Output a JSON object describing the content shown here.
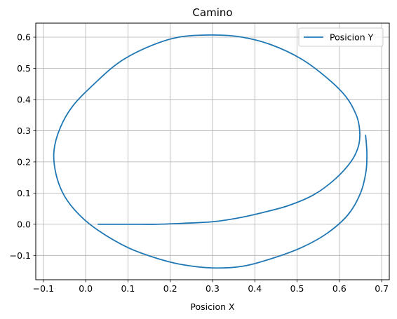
{
  "chart_data": {
    "type": "line",
    "title": "Camino",
    "xlabel": "Posicion X",
    "ylabel": "",
    "xlim": [
      -0.118,
      0.718
    ],
    "ylim": [
      -0.178,
      0.645
    ],
    "xticks": [
      -0.1,
      0.0,
      0.1,
      0.2,
      0.3,
      0.4,
      0.5,
      0.6,
      0.7
    ],
    "yticks": [
      -0.1,
      0.0,
      0.1,
      0.2,
      0.3,
      0.4,
      0.5,
      0.6
    ],
    "xtick_labels": [
      "−0.1",
      "0.0",
      "0.1",
      "0.2",
      "0.3",
      "0.4",
      "0.5",
      "0.6",
      "0.7"
    ],
    "ytick_labels": [
      "−0.1",
      "0.0",
      "0.1",
      "0.2",
      "0.3",
      "0.4",
      "0.5",
      "0.6"
    ],
    "grid": true,
    "legend_position": "top-right",
    "series": [
      {
        "name": "Posicion Y",
        "color": "#1f77b4",
        "points": [
          [
            0.03,
            0.0
          ],
          [
            0.1,
            0.0
          ],
          [
            0.17,
            0.0
          ],
          [
            0.23,
            0.003
          ],
          [
            0.3,
            0.008
          ],
          [
            0.36,
            0.02
          ],
          [
            0.42,
            0.038
          ],
          [
            0.48,
            0.06
          ],
          [
            0.54,
            0.095
          ],
          [
            0.59,
            0.145
          ],
          [
            0.627,
            0.2
          ],
          [
            0.645,
            0.25
          ],
          [
            0.648,
            0.3
          ],
          [
            0.64,
            0.35
          ],
          [
            0.615,
            0.41
          ],
          [
            0.57,
            0.47
          ],
          [
            0.51,
            0.53
          ],
          [
            0.44,
            0.575
          ],
          [
            0.37,
            0.6
          ],
          [
            0.3,
            0.607
          ],
          [
            0.22,
            0.6
          ],
          [
            0.15,
            0.57
          ],
          [
            0.08,
            0.52
          ],
          [
            0.02,
            0.45
          ],
          [
            -0.03,
            0.38
          ],
          [
            -0.06,
            0.31
          ],
          [
            -0.075,
            0.235
          ],
          [
            -0.07,
            0.16
          ],
          [
            -0.05,
            0.09
          ],
          [
            -0.015,
            0.03
          ],
          [
            0.03,
            -0.02
          ],
          [
            0.1,
            -0.075
          ],
          [
            0.17,
            -0.11
          ],
          [
            0.23,
            -0.13
          ],
          [
            0.3,
            -0.14
          ],
          [
            0.37,
            -0.135
          ],
          [
            0.44,
            -0.11
          ],
          [
            0.51,
            -0.075
          ],
          [
            0.57,
            -0.03
          ],
          [
            0.62,
            0.03
          ],
          [
            0.65,
            0.1
          ],
          [
            0.663,
            0.17
          ],
          [
            0.665,
            0.23
          ],
          [
            0.662,
            0.285
          ]
        ]
      }
    ]
  }
}
